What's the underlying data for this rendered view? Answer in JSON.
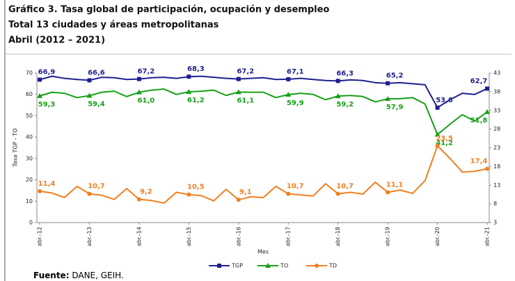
{
  "chart_data": {
    "type": "line",
    "title": "Gráfico 3. Tasa global de participación, ocupación y desempleo",
    "subtitle": "Total 13 ciudades y áreas metropolitanas",
    "period": "Abril (2012 – 2021)",
    "y_label": "Tasa TGP - TO",
    "x_label": "Mes",
    "source_label": "Fuente:",
    "source": "DANE, GEIH.",
    "categories": [
      "abr.-12",
      null,
      null,
      null,
      "abr.-13",
      null,
      null,
      null,
      "abr.-14",
      null,
      null,
      null,
      "abr.-15",
      null,
      null,
      null,
      "abr.-16",
      null,
      null,
      null,
      "abr.-17",
      null,
      null,
      null,
      "abr.-18",
      null,
      null,
      null,
      "abr.-19",
      null,
      null,
      null,
      "abr.-20",
      null,
      null,
      null,
      "abr.-21"
    ],
    "ylim": [
      0,
      70
    ],
    "yticks": [
      0,
      10,
      20,
      30,
      40,
      50,
      60,
      70
    ],
    "y2lim": [
      3,
      43
    ],
    "y2ticks": [
      3,
      8,
      13,
      18,
      23,
      28,
      33,
      38,
      43
    ],
    "series": [
      {
        "name": "TGP",
        "color": "#1f1f8f",
        "marker": "square",
        "values": [
          66.9,
          68.5,
          67.5,
          67.0,
          66.6,
          68.0,
          67.8,
          67.0,
          67.2,
          67.8,
          68.0,
          67.5,
          68.3,
          68.5,
          68.0,
          67.5,
          67.2,
          67.5,
          67.8,
          67.0,
          67.1,
          67.5,
          67.0,
          66.5,
          66.3,
          66.8,
          66.5,
          65.5,
          65.2,
          65.5,
          65.0,
          64.5,
          53.8,
          57.5,
          60.5,
          60.0,
          62.7
        ],
        "value_labels": [
          "66,9",
          null,
          null,
          null,
          "66,6",
          null,
          null,
          null,
          "67,2",
          null,
          null,
          null,
          "68,3",
          null,
          null,
          null,
          "67,2",
          null,
          null,
          null,
          "67,1",
          null,
          null,
          null,
          "66,3",
          null,
          null,
          null,
          "65,2",
          null,
          null,
          null,
          "53,8",
          null,
          null,
          null,
          "62,7"
        ]
      },
      {
        "name": "TO",
        "color": "#16a016",
        "marker": "triangle",
        "values": [
          59.3,
          61.0,
          60.5,
          58.5,
          59.4,
          61.0,
          61.5,
          59.0,
          61.0,
          62.0,
          62.5,
          60.0,
          61.2,
          61.5,
          62.0,
          59.5,
          61.1,
          61.0,
          61.0,
          58.5,
          59.9,
          60.5,
          60.0,
          57.5,
          59.2,
          59.5,
          59.0,
          56.5,
          57.9,
          58.0,
          58.5,
          55.5,
          41.2,
          46.0,
          50.5,
          47.5,
          51.8
        ],
        "value_labels": [
          "59,3",
          null,
          null,
          null,
          "59,4",
          null,
          null,
          null,
          "61,0",
          null,
          null,
          null,
          "61,2",
          null,
          null,
          null,
          "61,1",
          null,
          null,
          null,
          "59,9",
          null,
          null,
          null,
          "59,2",
          null,
          null,
          null,
          "57,9",
          null,
          null,
          null,
          "41,2",
          null,
          null,
          null,
          "51,8"
        ]
      },
      {
        "name": "TD",
        "color": "#f07f1f",
        "marker": "circle",
        "axis": "y2",
        "values": [
          11.4,
          10.9,
          9.7,
          12.7,
          10.7,
          10.3,
          9.2,
          12.1,
          9.2,
          8.9,
          8.2,
          11.1,
          10.5,
          10.2,
          8.8,
          11.9,
          9.1,
          9.9,
          9.7,
          12.7,
          10.7,
          10.4,
          10.1,
          13.4,
          10.7,
          11.1,
          10.6,
          13.8,
          11.1,
          11.7,
          10.8,
          14.2,
          23.5,
          20.2,
          16.5,
          16.7,
          17.4
        ],
        "value_labels": [
          "11,4",
          null,
          null,
          null,
          "10,7",
          null,
          null,
          null,
          "9,2",
          null,
          null,
          null,
          "10,5",
          null,
          null,
          null,
          "9,1",
          null,
          null,
          null,
          "10,7",
          null,
          null,
          null,
          "10,7",
          null,
          null,
          null,
          "11,1",
          null,
          null,
          null,
          "23,5",
          null,
          null,
          null,
          "17,4"
        ]
      }
    ]
  }
}
